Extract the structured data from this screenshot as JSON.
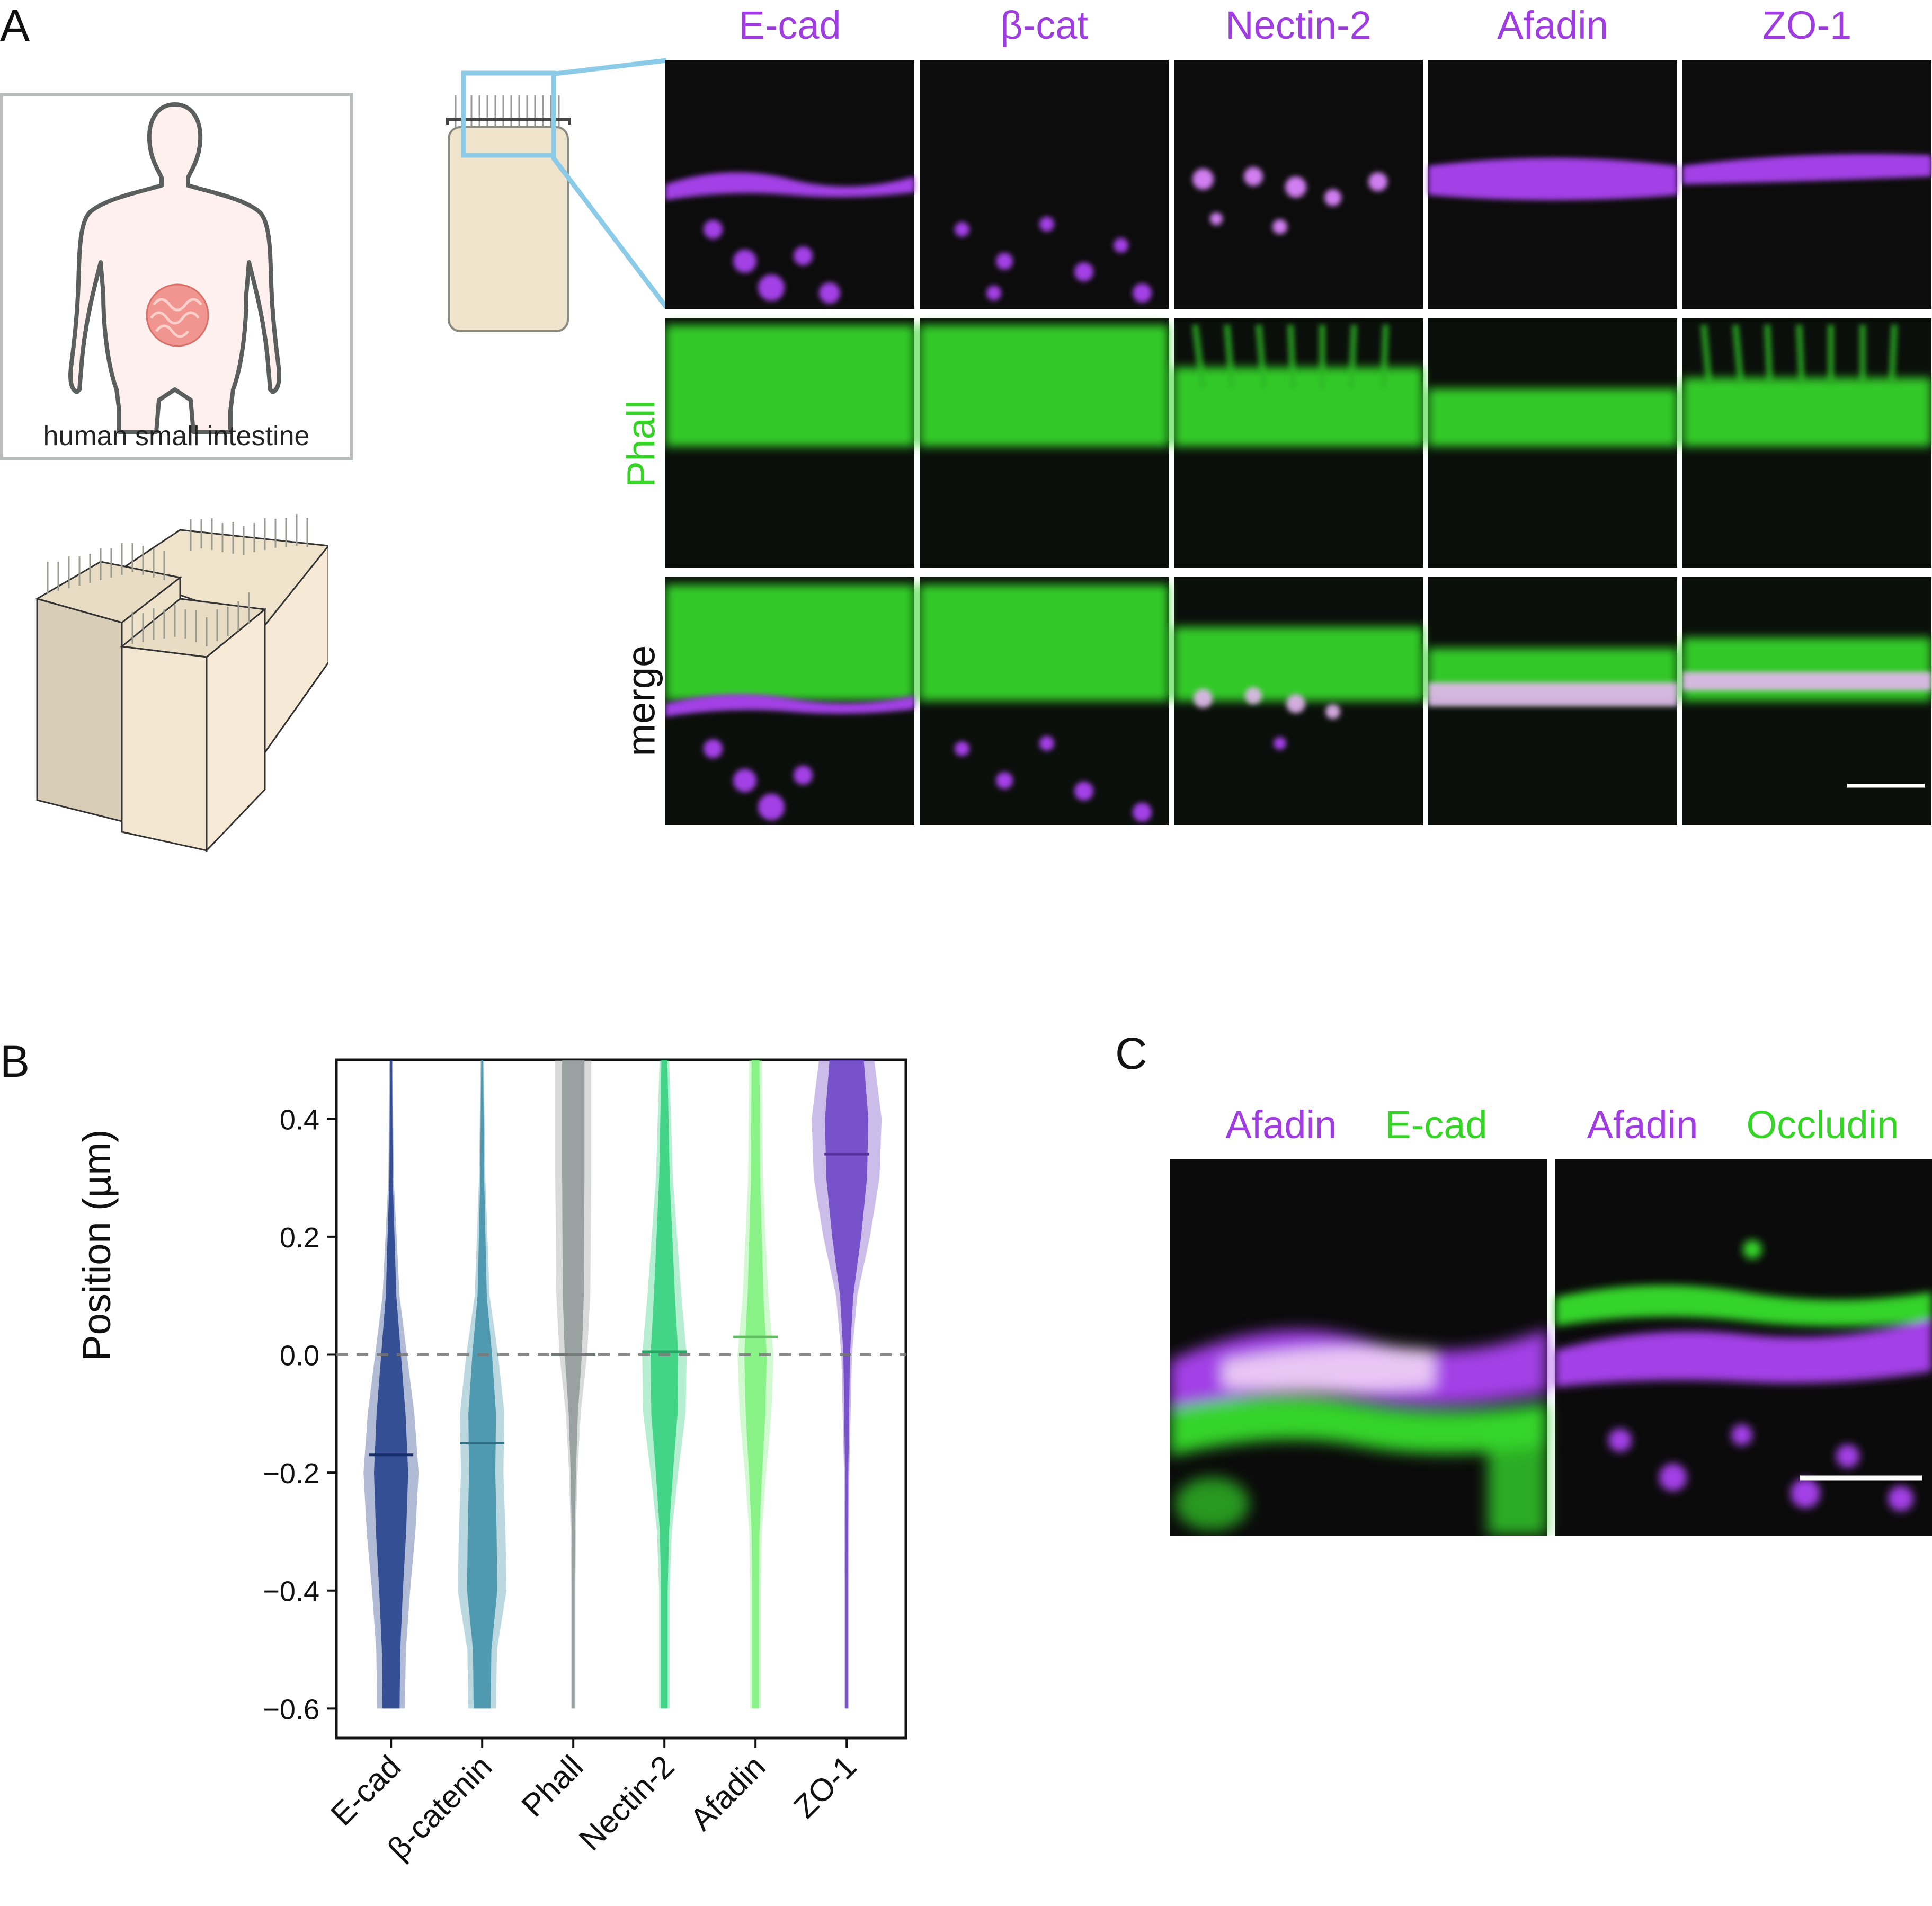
{
  "figure": {
    "panel_labels": {
      "a": "A",
      "b": "B",
      "c": "C"
    },
    "panelA": {
      "body_caption": "human small intestine",
      "markers": [
        "E-cad",
        "β-cat",
        "Nectin-2",
        "Afadin",
        "ZO-1"
      ],
      "row_labels": {
        "phall": "Phall",
        "merge": "merge"
      },
      "colors": {
        "magenta": "#a03de0",
        "green": "#35d426",
        "zoom_box": "#8ccbe8"
      }
    },
    "panelC": {
      "left_title": {
        "magenta": "Afadin",
        "green": "E-cad"
      },
      "right_title": {
        "magenta": "Afadin",
        "green": "Occludin"
      }
    }
  },
  "chart_data": {
    "type": "violin",
    "title": "",
    "xlabel": "",
    "ylabel": "Position (µm)",
    "ylim": [
      -0.65,
      0.5
    ],
    "yticks": [
      -0.6,
      -0.4,
      -0.2,
      0.0,
      0.2,
      0.4
    ],
    "ytick_labels": [
      "−0.6",
      "−0.4",
      "−0.2",
      "0.0",
      "0.2",
      "0.4"
    ],
    "reference_line": 0.0,
    "categories": [
      "E-cad",
      "β-catenin",
      "Phall",
      "Nectin-2",
      "Afadin",
      "ZO-1"
    ],
    "medians": [
      -0.17,
      -0.15,
      0.0,
      0.005,
      0.03,
      0.34
    ],
    "colors": [
      "#1f3c88",
      "#3d8fa8",
      "#8f9896",
      "#2fcf7a",
      "#7df07a",
      "#6a3fc4"
    ]
  }
}
